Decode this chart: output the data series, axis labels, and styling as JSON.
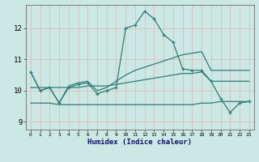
{
  "xlabel": "Humidex (Indice chaleur)",
  "x": [
    0,
    1,
    2,
    3,
    4,
    5,
    6,
    7,
    8,
    9,
    10,
    11,
    12,
    13,
    14,
    15,
    16,
    17,
    18,
    19,
    20,
    21,
    22,
    23
  ],
  "line1": [
    10.6,
    10.0,
    10.1,
    9.6,
    10.1,
    10.2,
    10.25,
    9.9,
    10.0,
    10.1,
    12.0,
    12.1,
    12.55,
    12.3,
    11.8,
    11.55,
    10.7,
    10.65,
    10.65,
    10.3,
    9.75,
    9.3,
    9.6,
    9.65
  ],
  "line2": [
    10.6,
    10.0,
    10.1,
    9.6,
    10.15,
    10.25,
    10.3,
    10.0,
    10.1,
    10.3,
    10.5,
    10.65,
    10.75,
    10.85,
    10.95,
    11.05,
    11.15,
    11.2,
    11.25,
    10.65,
    10.65,
    10.65,
    10.65,
    10.65
  ],
  "line3": [
    9.6,
    9.6,
    9.6,
    9.55,
    9.55,
    9.55,
    9.55,
    9.55,
    9.55,
    9.55,
    9.55,
    9.55,
    9.55,
    9.55,
    9.55,
    9.55,
    9.55,
    9.55,
    9.6,
    9.6,
    9.65,
    9.65,
    9.65,
    9.65
  ],
  "line4": [
    10.1,
    10.1,
    10.1,
    10.1,
    10.1,
    10.1,
    10.15,
    10.15,
    10.15,
    10.2,
    10.25,
    10.3,
    10.35,
    10.4,
    10.45,
    10.5,
    10.55,
    10.55,
    10.6,
    10.3,
    10.3,
    10.3,
    10.3,
    10.3
  ],
  "line_color": "#2d7d78",
  "bg_color": "#cce8e4",
  "grid_color": "#e8b0b0",
  "ylim": [
    8.75,
    12.75
  ],
  "yticks": [
    9,
    10,
    11,
    12
  ],
  "xticks": [
    0,
    1,
    2,
    3,
    4,
    5,
    6,
    7,
    8,
    9,
    10,
    11,
    12,
    13,
    14,
    15,
    16,
    17,
    18,
    19,
    20,
    21,
    22,
    23
  ]
}
